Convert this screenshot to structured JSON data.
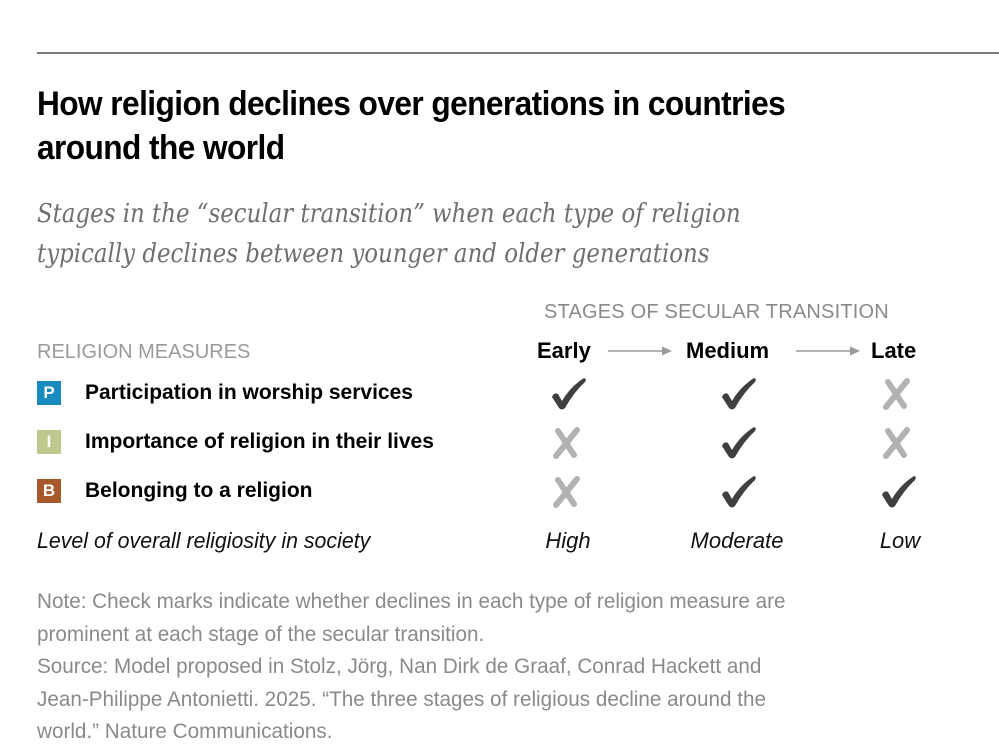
{
  "title": "How religion declines over generations in countries around the world",
  "title_lines": [
    "How religion declines over generations in countries",
    "around the world"
  ],
  "subtitle_lines": [
    "Stages in the “secular transition” when each type of religion",
    "typically declines between younger and older generations"
  ],
  "stages_header": "STAGES OF SECULAR TRANSITION",
  "measures_header": "RELIGION MEASURES",
  "stages": [
    "Early",
    "Medium",
    "Late"
  ],
  "measures": [
    {
      "badge": "P",
      "color": "#1a8bbf",
      "label": "Participation in worship services",
      "marks": [
        "check",
        "check",
        "cross"
      ]
    },
    {
      "badge": "I",
      "color": "#bfc98f",
      "label": "Importance of religion in their lives",
      "marks": [
        "cross",
        "check",
        "cross"
      ]
    },
    {
      "badge": "B",
      "color": "#a7592b",
      "label": "Belonging to a religion",
      "marks": [
        "cross",
        "check",
        "check"
      ]
    }
  ],
  "religiosity": {
    "label": "Level of overall religiosity in society",
    "values": [
      "High",
      "Moderate",
      "Low"
    ]
  },
  "colors": {
    "check": "#3f3f3f",
    "cross": "#b2b2b2",
    "arrow": "#9a9a9a"
  },
  "note_lines": [
    "Note: Check marks indicate whether declines in each type of religion measure are",
    "prominent at each stage of the secular transition."
  ],
  "source_lines": [
    "Source: Model proposed in Stolz, Jörg, Nan Dirk de Graaf, Conrad Hackett and",
    "Jean-Philippe Antonietti. 2025. “The three stages of religious decline around the",
    "world.” Nature Communications."
  ]
}
